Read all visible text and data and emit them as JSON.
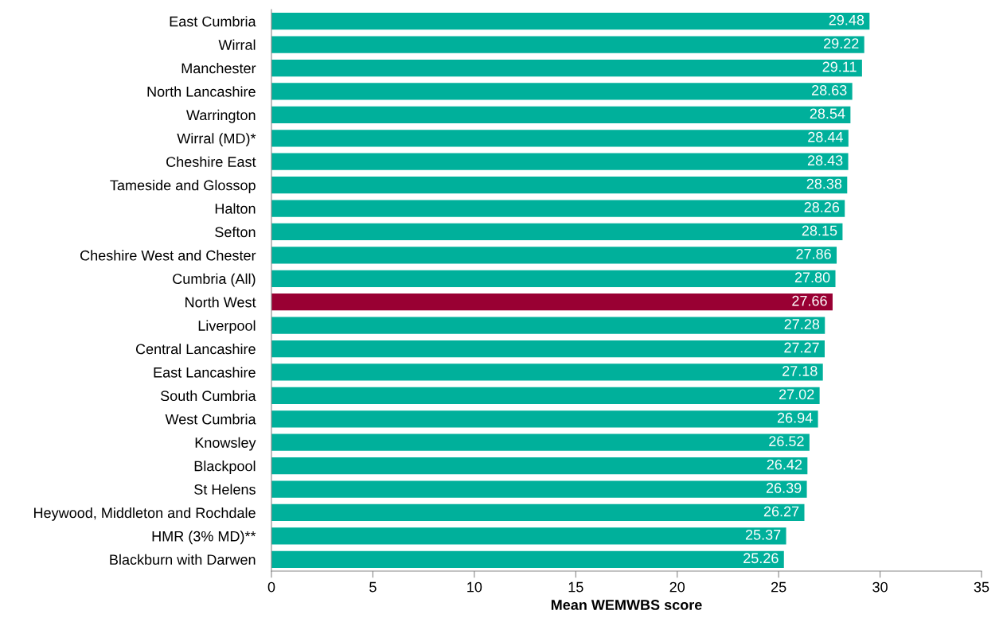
{
  "chart_data": {
    "type": "bar",
    "orientation": "horizontal",
    "xlabel": "Mean WEMWBS score",
    "categories": [
      "East Cumbria",
      "Wirral",
      "Manchester",
      "North Lancashire",
      "Warrington",
      "Wirral (MD)*",
      "Cheshire East",
      "Tameside and Glossop",
      "Halton",
      "Sefton",
      "Cheshire West and Chester",
      "Cumbria (All)",
      "North West",
      "Liverpool",
      "Central Lancashire",
      "East Lancashire",
      "South Cumbria",
      "West Cumbria",
      "Knowsley",
      "Blackpool",
      "St Helens",
      "Heywood, Middleton and Rochdale",
      "HMR (3% MD)**",
      "Blackburn with Darwen"
    ],
    "values": [
      29.48,
      29.22,
      29.11,
      28.63,
      28.54,
      28.44,
      28.43,
      28.38,
      28.26,
      28.15,
      27.86,
      27.8,
      27.66,
      27.28,
      27.27,
      27.18,
      27.02,
      26.94,
      26.52,
      26.42,
      26.39,
      26.27,
      25.37,
      25.26
    ],
    "value_labels": [
      "29.48",
      "29.22",
      "29.11",
      "28.63",
      "28.54",
      "28.44",
      "28.43",
      "28.38",
      "28.26",
      "28.15",
      "27.86",
      "27.80",
      "27.66",
      "27.28",
      "27.27",
      "27.18",
      "27.02",
      "26.94",
      "26.52",
      "26.42",
      "26.39",
      "26.27",
      "25.37",
      "25.26"
    ],
    "colors": [
      "#00b09b",
      "#00b09b",
      "#00b09b",
      "#00b09b",
      "#00b09b",
      "#00b09b",
      "#00b09b",
      "#00b09b",
      "#00b09b",
      "#00b09b",
      "#00b09b",
      "#00b09b",
      "#990033",
      "#00b09b",
      "#00b09b",
      "#00b09b",
      "#00b09b",
      "#00b09b",
      "#00b09b",
      "#00b09b",
      "#00b09b",
      "#00b09b",
      "#00b09b",
      "#00b09b"
    ],
    "xlim": [
      0,
      35
    ],
    "xticks": [
      0,
      5,
      10,
      15,
      20,
      25,
      30,
      35
    ],
    "grid": false,
    "legend": false
  }
}
